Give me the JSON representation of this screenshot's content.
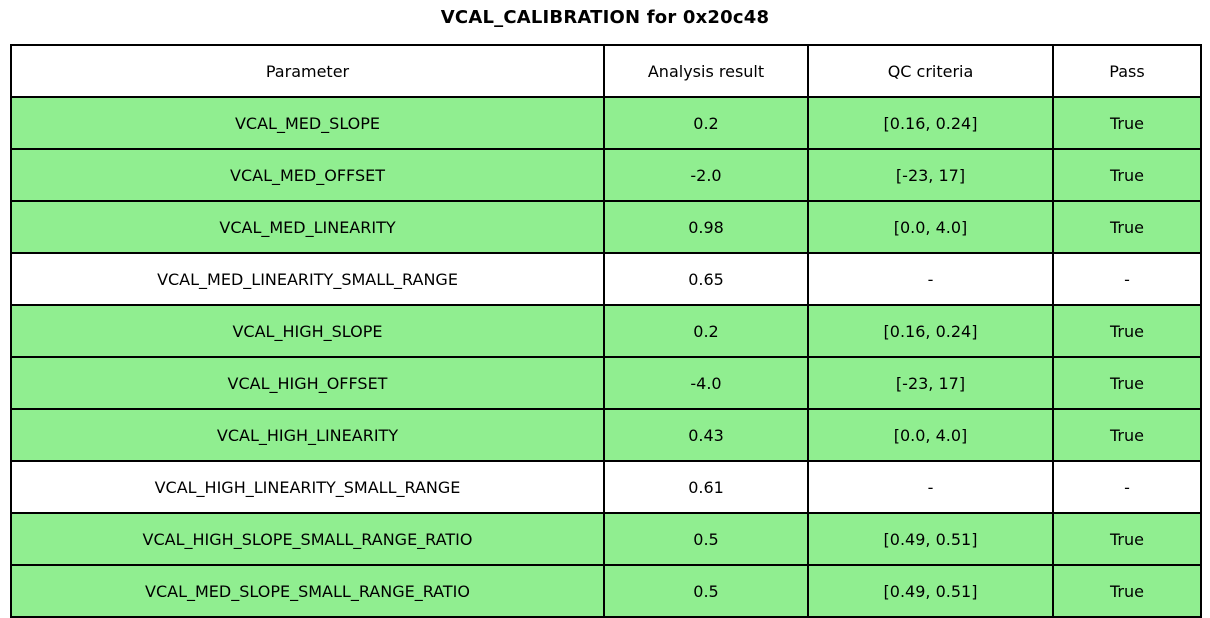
{
  "title": "VCAL_CALIBRATION for 0x20c48",
  "colors": {
    "pass_row_bg": "#90ee90",
    "default_row_bg": "#ffffff",
    "border": "#000000",
    "text": "#000000"
  },
  "chart_data": {
    "type": "table",
    "title": "VCAL_CALIBRATION for 0x20c48",
    "columns": [
      "Parameter",
      "Analysis result",
      "QC criteria",
      "Pass"
    ],
    "rows": [
      {
        "parameter": "VCAL_MED_SLOPE",
        "result": "0.2",
        "criteria": "[0.16, 0.24]",
        "pass": "True",
        "highlight": true
      },
      {
        "parameter": "VCAL_MED_OFFSET",
        "result": "-2.0",
        "criteria": "[-23, 17]",
        "pass": "True",
        "highlight": true
      },
      {
        "parameter": "VCAL_MED_LINEARITY",
        "result": "0.98",
        "criteria": "[0.0, 4.0]",
        "pass": "True",
        "highlight": true
      },
      {
        "parameter": "VCAL_MED_LINEARITY_SMALL_RANGE",
        "result": "0.65",
        "criteria": "-",
        "pass": "-",
        "highlight": false
      },
      {
        "parameter": "VCAL_HIGH_SLOPE",
        "result": "0.2",
        "criteria": "[0.16, 0.24]",
        "pass": "True",
        "highlight": true
      },
      {
        "parameter": "VCAL_HIGH_OFFSET",
        "result": "-4.0",
        "criteria": "[-23, 17]",
        "pass": "True",
        "highlight": true
      },
      {
        "parameter": "VCAL_HIGH_LINEARITY",
        "result": "0.43",
        "criteria": "[0.0, 4.0]",
        "pass": "True",
        "highlight": true
      },
      {
        "parameter": "VCAL_HIGH_LINEARITY_SMALL_RANGE",
        "result": "0.61",
        "criteria": "-",
        "pass": "-",
        "highlight": false
      },
      {
        "parameter": "VCAL_HIGH_SLOPE_SMALL_RANGE_RATIO",
        "result": "0.5",
        "criteria": "[0.49, 0.51]",
        "pass": "True",
        "highlight": true
      },
      {
        "parameter": "VCAL_MED_SLOPE_SMALL_RANGE_RATIO",
        "result": "0.5",
        "criteria": "[0.49, 0.51]",
        "pass": "True",
        "highlight": true
      }
    ]
  }
}
